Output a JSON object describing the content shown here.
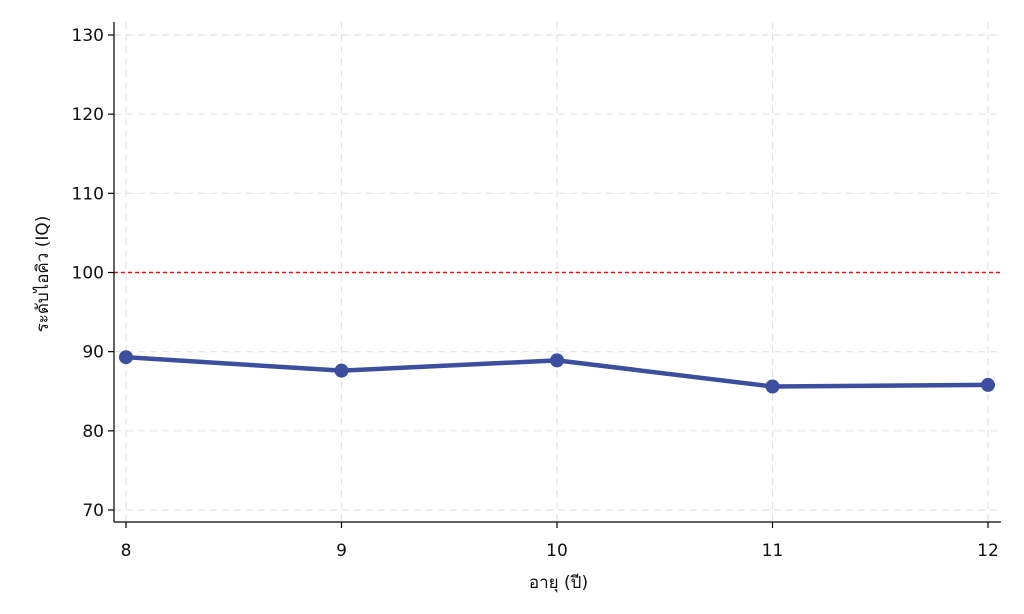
{
  "chart_data": {
    "type": "line",
    "title": "",
    "xlabel": "อายุ (ปี)",
    "ylabel": "ระดับไอคิว (IQ)",
    "x": [
      8,
      9,
      10,
      11,
      12
    ],
    "series": [
      {
        "values": [
          89.3,
          87.6,
          88.9,
          85.6,
          85.8
        ],
        "color": "#3b4f9e"
      }
    ],
    "xlim": [
      8,
      12
    ],
    "ylim": [
      68.5,
      131.5
    ],
    "xticks": [
      8,
      9,
      10,
      11,
      12
    ],
    "yticks": [
      70,
      80,
      90,
      100,
      110,
      120,
      130
    ],
    "reference_line": {
      "y": 100,
      "color": "#e8141b",
      "style": "dashed"
    },
    "grid": true,
    "grid_color": "#e3e3e3"
  }
}
